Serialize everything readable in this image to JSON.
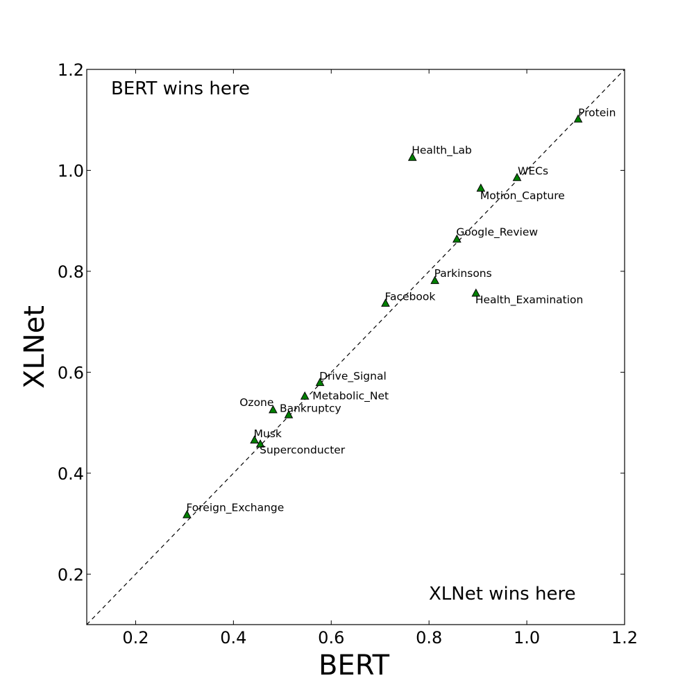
{
  "chart_data": {
    "type": "scatter",
    "title": "",
    "xlabel": "BERT",
    "ylabel": "XLNet",
    "xlim": [
      0.1,
      1.2
    ],
    "ylim": [
      0.1,
      1.2
    ],
    "xticks": [
      "0.2",
      "0.4",
      "0.6",
      "0.8",
      "1.0",
      "1.2"
    ],
    "yticks": [
      "0.2",
      "0.4",
      "0.6",
      "0.8",
      "1.0",
      "1.2"
    ],
    "grid": false,
    "marker": "triangle",
    "marker_color": "#008000",
    "reference_line": "y = x (dashed)",
    "annotations": {
      "top_left": "BERT wins here",
      "bottom_right": "XLNet wins here"
    },
    "points": [
      {
        "label": "Protein",
        "x": 1.105,
        "y": 1.102
      },
      {
        "label": "Health_Lab",
        "x": 0.766,
        "y": 1.026
      },
      {
        "label": "WECs",
        "x": 0.98,
        "y": 0.986
      },
      {
        "label": "Motion_Capture",
        "x": 0.906,
        "y": 0.965
      },
      {
        "label": "Google_Review",
        "x": 0.857,
        "y": 0.864
      },
      {
        "label": "Parkinsons",
        "x": 0.812,
        "y": 0.782
      },
      {
        "label": "Health_Examination",
        "x": 0.896,
        "y": 0.757
      },
      {
        "label": "Facebook",
        "x": 0.711,
        "y": 0.737
      },
      {
        "label": "Drive_Signal",
        "x": 0.577,
        "y": 0.58
      },
      {
        "label": "Metabolic_Net",
        "x": 0.546,
        "y": 0.553
      },
      {
        "label": "Ozone",
        "x": 0.481,
        "y": 0.526
      },
      {
        "label": "Bankruptcy",
        "x": 0.513,
        "y": 0.516
      },
      {
        "label": "Musk",
        "x": 0.443,
        "y": 0.466
      },
      {
        "label": "Superconducter",
        "x": 0.455,
        "y": 0.458
      },
      {
        "label": "Foreign_Exchange",
        "x": 0.305,
        "y": 0.318
      }
    ]
  }
}
